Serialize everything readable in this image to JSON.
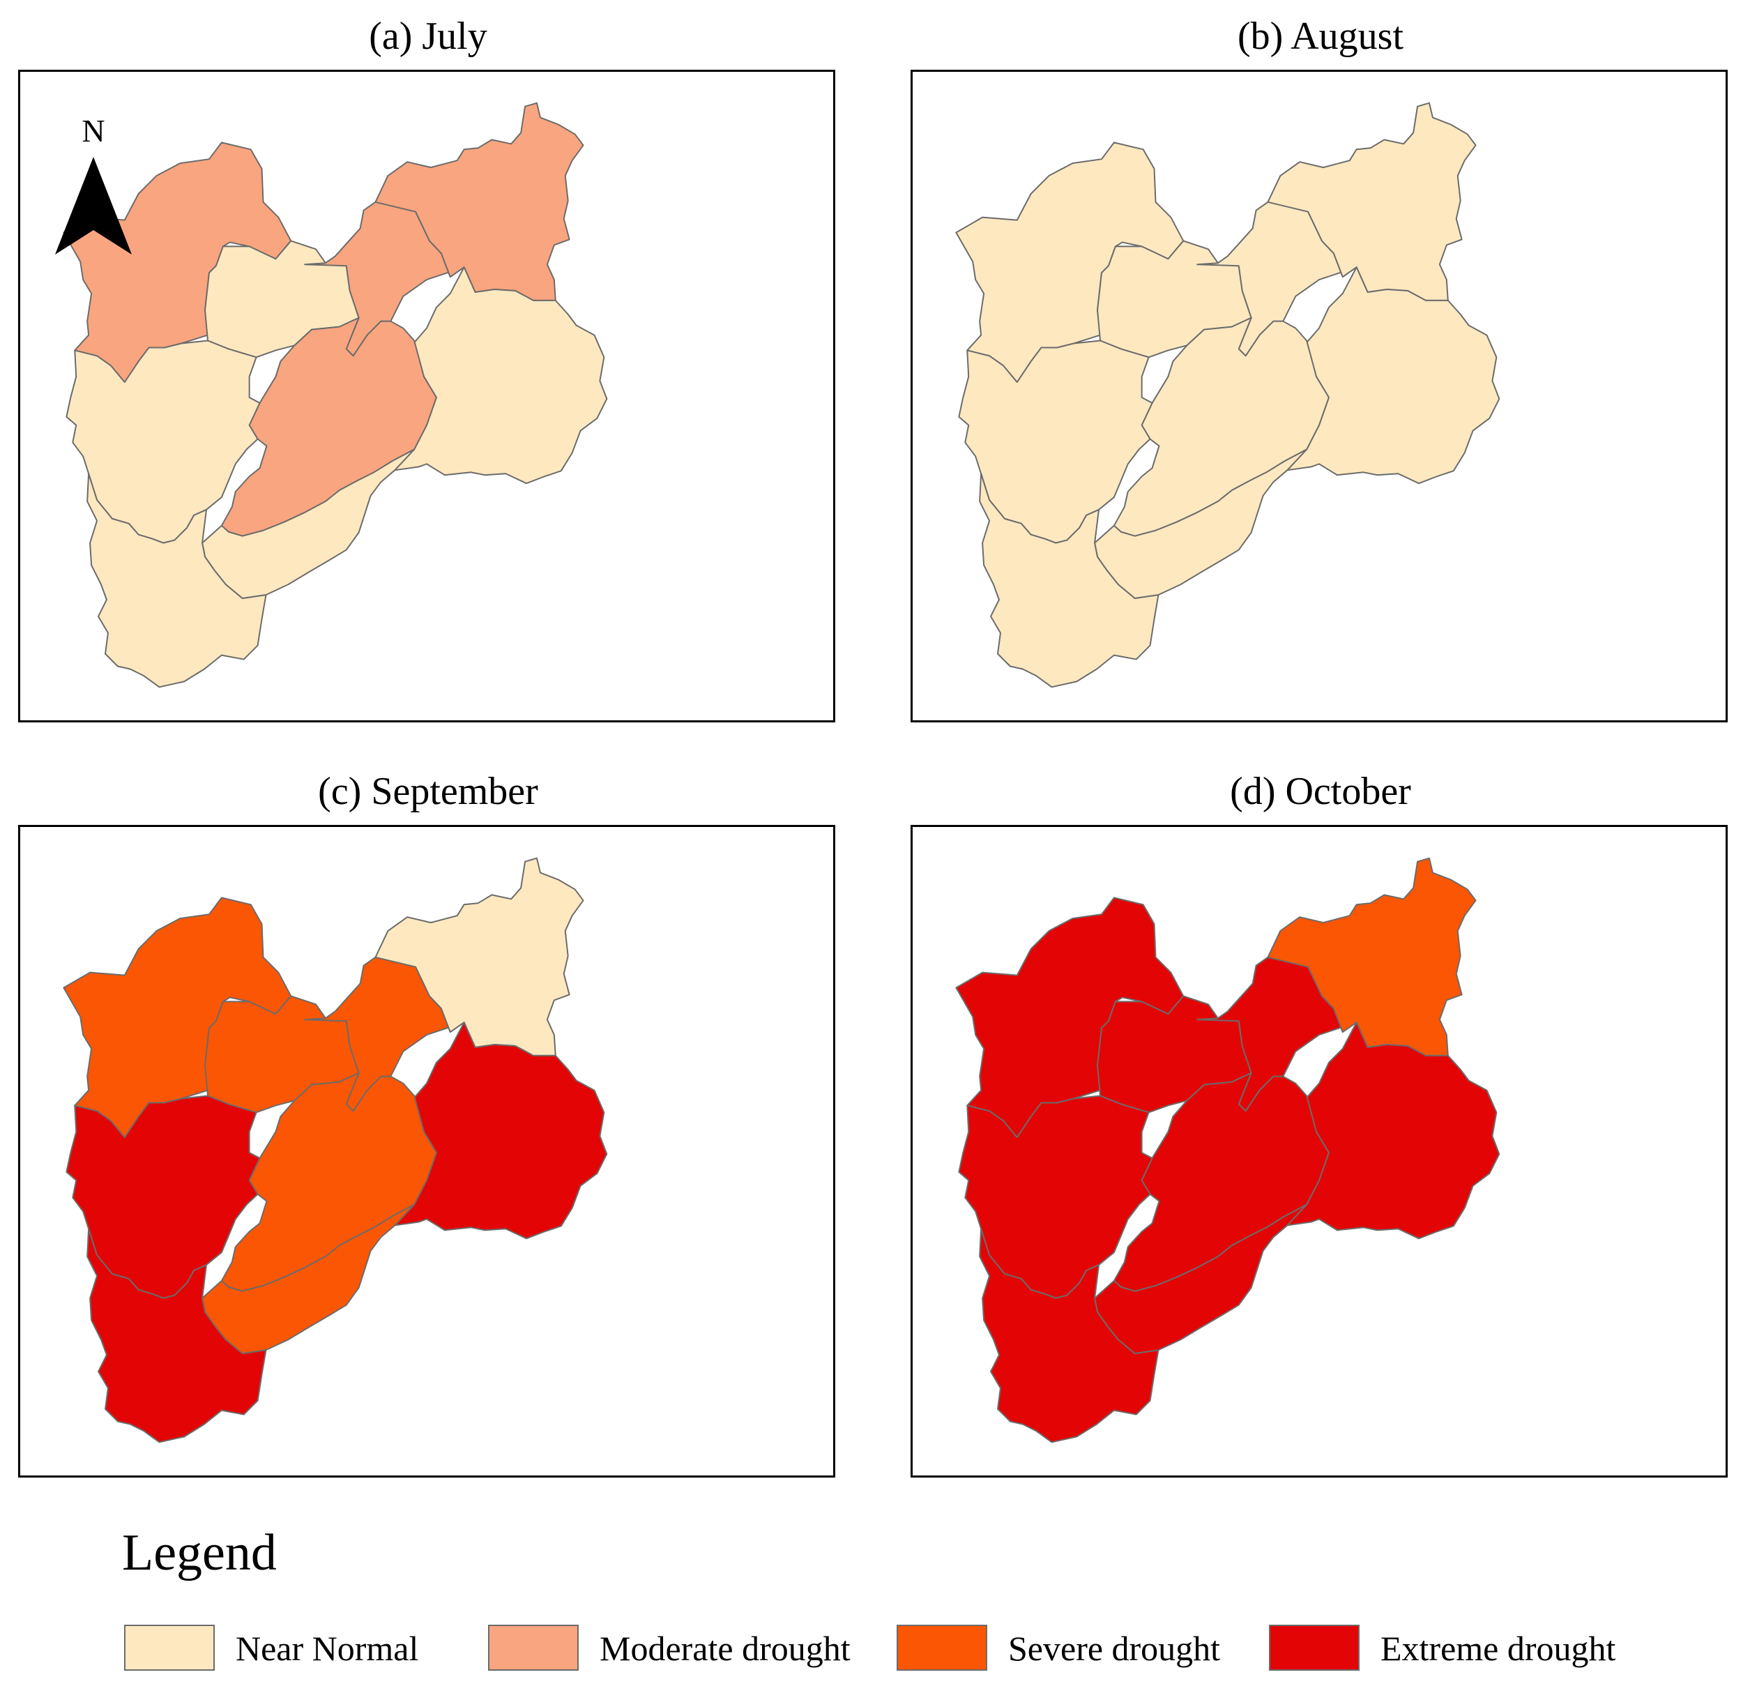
{
  "panels": [
    {
      "title": "(a) July",
      "north_label": "N",
      "regions": [
        "Moderate drought",
        "Near Normal",
        "Moderate drought",
        "Moderate drought",
        "Near Normal",
        "Moderate drought",
        "Near Normal",
        "Near Normal",
        "Near Normal"
      ]
    },
    {
      "title": "(b) August",
      "regions": [
        "Near Normal",
        "Near Normal",
        "Near Normal",
        "Near Normal",
        "Near Normal",
        "Near Normal",
        "Near Normal",
        "Near Normal",
        "Near Normal"
      ]
    },
    {
      "title": "(c) September",
      "regions": [
        "Severe drought",
        "Severe drought",
        "Severe drought",
        "Near Normal",
        "Extreme drought",
        "Severe drought",
        "Extreme drought",
        "Severe drought",
        "Extreme drought"
      ]
    },
    {
      "title": "(d) October",
      "regions": [
        "Extreme drought",
        "Extreme drought",
        "Extreme drought",
        "Severe drought",
        "Extreme drought",
        "Extreme drought",
        "Extreme drought",
        "Extreme drought",
        "Extreme drought"
      ]
    }
  ],
  "legend": {
    "title": "Legend",
    "items": [
      {
        "label": "Near Normal",
        "color": "#fde8c0"
      },
      {
        "label": "Moderate drought",
        "color": "#f9a57f"
      },
      {
        "label": "Severe drought",
        "color": "#fb5604"
      },
      {
        "label": "Extreme drought",
        "color": "#e30505"
      }
    ]
  },
  "colors": {
    "border": "#6b6b6b",
    "frame": "#000000"
  }
}
